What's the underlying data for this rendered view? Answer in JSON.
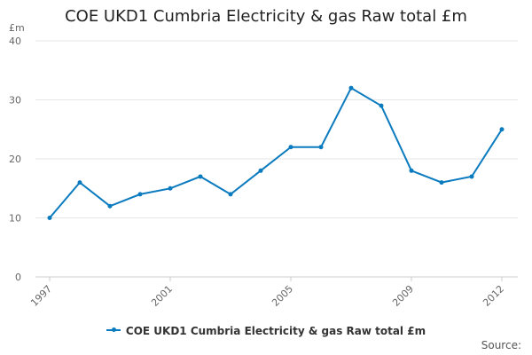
{
  "chart_data": {
    "type": "line",
    "title": "COE UKD1 Cumbria Electricity & gas Raw total £m",
    "ylabel": "£m",
    "xlabel": "",
    "ylim": [
      0,
      40
    ],
    "yticks": [
      0,
      10,
      20,
      30,
      40
    ],
    "xlim": [
      1997,
      2012
    ],
    "xticks": [
      1997,
      2001,
      2005,
      2009,
      2012
    ],
    "grid": true,
    "legend_position": "bottom",
    "x": [
      1997,
      1998,
      1999,
      2000,
      2001,
      2002,
      2003,
      2004,
      2005,
      2006,
      2007,
      2008,
      2009,
      2010,
      2011,
      2012
    ],
    "series": [
      {
        "name": "COE UKD1 Cumbria Electricity & gas Raw total £m",
        "color": "#0b7bbf",
        "values": [
          10,
          16,
          12,
          14,
          15,
          17,
          14,
          18,
          22,
          22,
          32,
          29,
          18,
          16,
          17,
          25
        ]
      }
    ],
    "source_label": "Source:"
  }
}
